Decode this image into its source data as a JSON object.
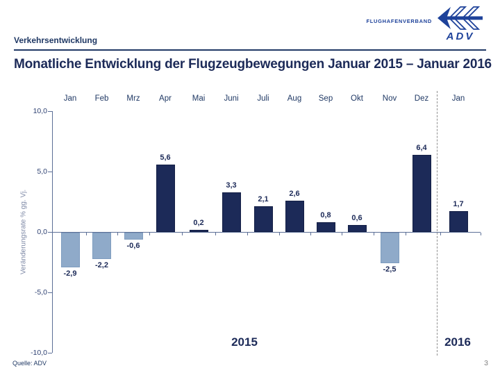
{
  "header": {
    "section_label": "Verkehrsentwicklung",
    "title": "Monatliche Entwicklung der Flugzeugbewegungen Januar 2015 – Januar 2016",
    "logo": {
      "org": "FLUGHAFENVERBAND",
      "abbr": "ADV"
    }
  },
  "chart_data": {
    "type": "bar",
    "categories": [
      "Jan",
      "Feb",
      "Mrz",
      "Apr",
      "Mai",
      "Juni",
      "Juli",
      "Aug",
      "Sep",
      "Okt",
      "Nov",
      "Dez",
      "Jan"
    ],
    "values": [
      -2.9,
      -2.2,
      -0.6,
      5.6,
      0.2,
      3.3,
      2.1,
      2.6,
      0.8,
      0.6,
      -2.5,
      6.4,
      1.7
    ],
    "value_labels": [
      "-2,9",
      "-2,2",
      "-0,6",
      "5,6",
      "0,2",
      "3,3",
      "2,1",
      "2,6",
      "0,8",
      "0,6",
      "-2,5",
      "6,4",
      "1,7"
    ],
    "title": "Monatliche Entwicklung der Flugzeugbewegungen Januar 2015 – Januar 2016",
    "xlabel": "",
    "ylabel": "Veränderungsrate % gg. Vj.",
    "ylim": [
      -10,
      10
    ],
    "yticks": [
      10,
      5,
      0,
      -5,
      -10
    ],
    "ytick_labels": [
      "10,0",
      "5,0",
      "0,0",
      "-5,0",
      "-10,0"
    ],
    "grid": false,
    "legend": null,
    "year_groups": [
      {
        "label": "2015",
        "months": 12
      },
      {
        "label": "2016",
        "months": 1
      }
    ],
    "colors": {
      "positive_bar": "#1C2A58",
      "negative_bar": "#8FAAC9"
    }
  },
  "footer": {
    "source": "Quelle: ADV",
    "page": "3"
  }
}
